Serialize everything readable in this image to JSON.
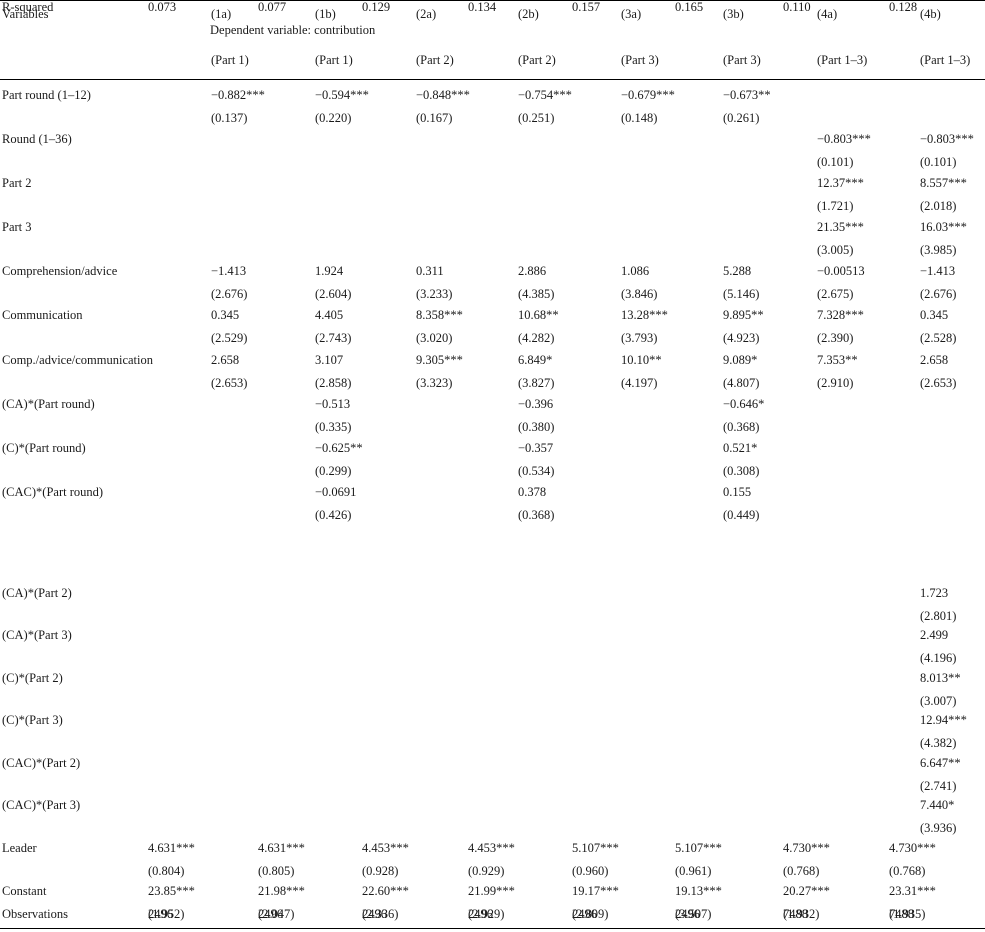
{
  "header": {
    "variables_label": "Variables",
    "dependent_variable": "Dependent variable: contribution",
    "columns": [
      {
        "code": "(1a)",
        "part": "(Part 1)"
      },
      {
        "code": "(1b)",
        "part": "(Part 1)"
      },
      {
        "code": "(2a)",
        "part": "(Part 2)"
      },
      {
        "code": "(2b)",
        "part": "(Part 2)"
      },
      {
        "code": "(3a)",
        "part": "(Part 3)"
      },
      {
        "code": "(3b)",
        "part": "(Part 3)"
      },
      {
        "code": "(4a)",
        "part": "(Part 1–3)"
      },
      {
        "code": "(4b)",
        "part": "(Part 1–3)"
      }
    ]
  },
  "rows": [
    {
      "label": "Part round (1–12)",
      "coef": [
        "−0.882***",
        "−0.594***",
        "−0.848***",
        "−0.754***",
        "−0.679***",
        "−0.673**",
        "",
        ""
      ],
      "se": [
        "(0.137)",
        "(0.220)",
        "(0.167)",
        "(0.251)",
        "(0.148)",
        "(0.261)",
        "",
        ""
      ]
    },
    {
      "label": "Round (1–36)",
      "coef": [
        "",
        "",
        "",
        "",
        "",
        "",
        "−0.803***",
        "−0.803***"
      ],
      "se": [
        "",
        "",
        "",
        "",
        "",
        "",
        "(0.101)",
        "(0.101)"
      ]
    },
    {
      "label": "Part 2",
      "coef": [
        "",
        "",
        "",
        "",
        "",
        "",
        "12.37***",
        "8.557***"
      ],
      "se": [
        "",
        "",
        "",
        "",
        "",
        "",
        "(1.721)",
        "(2.018)"
      ]
    },
    {
      "label": "Part 3",
      "coef": [
        "",
        "",
        "",
        "",
        "",
        "",
        "21.35***",
        "16.03***"
      ],
      "se": [
        "",
        "",
        "",
        "",
        "",
        "",
        "(3.005)",
        "(3.985)"
      ]
    },
    {
      "label": "Comprehension/advice",
      "coef": [
        "−1.413",
        "1.924",
        "0.311",
        "2.886",
        "1.086",
        "5.288",
        "−0.00513",
        "−1.413"
      ],
      "se": [
        "(2.676)",
        "(2.604)",
        "(3.233)",
        "(4.385)",
        "(3.846)",
        "(5.146)",
        "(2.675)",
        "(2.676)"
      ]
    },
    {
      "label": "Communication",
      "coef": [
        "0.345",
        "4.405",
        "8.358***",
        "10.68**",
        "13.28***",
        "9.895**",
        "7.328***",
        "0.345"
      ],
      "se": [
        "(2.529)",
        "(2.743)",
        "(3.020)",
        "(4.282)",
        "(3.793)",
        "(4.923)",
        "(2.390)",
        "(2.528)"
      ]
    },
    {
      "label": "Comp./advice/communication",
      "coef": [
        "2.658",
        "3.107",
        "9.305***",
        "6.849*",
        "10.10**",
        "9.089*",
        "7.353**",
        "2.658"
      ],
      "se": [
        "(2.653)",
        "(2.858)",
        "(3.323)",
        "(3.827)",
        "(4.197)",
        "(4.807)",
        "(2.910)",
        "(2.653)"
      ]
    },
    {
      "label": "(CA)*(Part round)",
      "coef": [
        "",
        "−0.513",
        "",
        "−0.396",
        "",
        "−0.646*",
        "",
        ""
      ],
      "se": [
        "",
        "(0.335)",
        "",
        "(0.380)",
        "",
        "(0.368)",
        "",
        ""
      ]
    },
    {
      "label": "(C)*(Part round)",
      "coef": [
        "",
        "−0.625**",
        "",
        "−0.357",
        "",
        "0.521*",
        "",
        ""
      ],
      "se": [
        "",
        "(0.299)",
        "",
        "(0.534)",
        "",
        "(0.308)",
        "",
        ""
      ]
    },
    {
      "label": "(CAC)*(Part round)",
      "coef": [
        "",
        "−0.0691",
        "",
        "0.378",
        "",
        "0.155",
        "",
        ""
      ],
      "se": [
        "",
        "(0.426)",
        "",
        "(0.368)",
        "",
        "(0.449)",
        "",
        ""
      ]
    },
    {
      "label": "(CA)*(Part 2)",
      "coef": [
        "",
        "",
        "",
        "",
        "",
        "",
        "",
        "1.723"
      ],
      "se": [
        "",
        "",
        "",
        "",
        "",
        "",
        "",
        "(2.801)"
      ]
    },
    {
      "label": "(CA)*(Part 3)",
      "coef": [
        "",
        "",
        "",
        "",
        "",
        "",
        "",
        "2.499"
      ],
      "se": [
        "",
        "",
        "",
        "",
        "",
        "",
        "",
        "(4.196)"
      ]
    },
    {
      "label": "(C)*(Part 2)",
      "coef": [
        "",
        "",
        "",
        "",
        "",
        "",
        "",
        "8.013**"
      ],
      "se": [
        "",
        "",
        "",
        "",
        "",
        "",
        "",
        "(3.007)"
      ]
    },
    {
      "label": "(C)*(Part 3)",
      "coef": [
        "",
        "",
        "",
        "",
        "",
        "",
        "",
        "12.94***"
      ],
      "se": [
        "",
        "",
        "",
        "",
        "",
        "",
        "",
        "(4.382)"
      ]
    },
    {
      "label": "(CAC)*(Part 2)",
      "coef": [
        "",
        "",
        "",
        "",
        "",
        "",
        "",
        "6.647**"
      ],
      "se": [
        "",
        "",
        "",
        "",
        "",
        "",
        "",
        "(2.741)"
      ]
    },
    {
      "label": "(CAC)*(Part 3)",
      "coef": [
        "",
        "",
        "",
        "",
        "",
        "",
        "",
        "7.440*"
      ],
      "se": [
        "",
        "",
        "",
        "",
        "",
        "",
        "",
        "(3.936)"
      ]
    },
    {
      "label": "Leader",
      "coef": [
        "4.631***",
        "4.631***",
        "4.453***",
        "4.453***",
        "5.107***",
        "5.107***",
        "4.730***",
        "4.730***"
      ],
      "se": [
        "(0.804)",
        "(0.805)",
        "(0.928)",
        "(0.929)",
        "(0.960)",
        "(0.961)",
        "(0.768)",
        "(0.768)"
      ]
    },
    {
      "label": "Constant",
      "coef": [
        "23.85***",
        "21.98***",
        "22.60***",
        "21.99***",
        "19.17***",
        "19.13***",
        "20.27***",
        "23.31***"
      ],
      "se": [
        "(1.952)",
        "(2.047)",
        "(2.336)",
        "(2.929)",
        "(2.809)",
        "(3.507)",
        "(1.932)",
        "(1.935)"
      ]
    },
    {
      "label": "Observations",
      "coef": [
        "2496",
        "2496",
        "2496",
        "2496",
        "2496",
        "2496",
        "7488",
        "7488"
      ],
      "se": [
        "",
        "",
        "",
        "",
        "",
        "",
        "",
        ""
      ]
    },
    {
      "label": "R-squared",
      "coef": [
        "0.073",
        "0.077",
        "0.129",
        "0.134",
        "0.157",
        "0.165",
        "0.110",
        "0.128"
      ],
      "se": [
        "",
        "",
        "",
        "",
        "",
        "",
        "",
        ""
      ]
    }
  ]
}
